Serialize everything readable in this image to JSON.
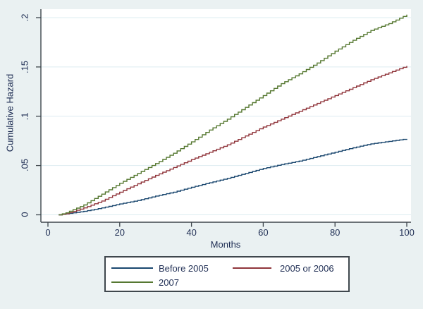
{
  "figure": {
    "background_color": "#eaf1f2",
    "plot_background_color": "#ffffff",
    "axis_color": "#3f474d",
    "grid_color": "#ddecf1",
    "text_color": "#1e2d53"
  },
  "chart_data": {
    "type": "line",
    "subtype": "step-function cumulative hazard (Nelson-Aalen style)",
    "title": "",
    "xlabel": "Months",
    "ylabel": "Cumulative Hazard",
    "xlim": [
      0,
      100
    ],
    "ylim": [
      0,
      0.2
    ],
    "x_ticks": [
      0,
      20,
      40,
      60,
      80,
      100
    ],
    "x_tick_labels": [
      "0",
      "20",
      "40",
      "60",
      "80",
      "100"
    ],
    "y_ticks": [
      0,
      0.05,
      0.1,
      0.15,
      0.2
    ],
    "y_tick_labels": [
      "0",
      ".05",
      ".1",
      ".15",
      ".2"
    ],
    "grid": "horizontal",
    "legend_position": "below-plot",
    "legend_border": true,
    "series": [
      {
        "name": "Before 2005",
        "color": "#1a476f",
        "points": [
          [
            3,
            0
          ],
          [
            5,
            0.001
          ],
          [
            10,
            0.0035
          ],
          [
            15,
            0.007
          ],
          [
            20,
            0.011
          ],
          [
            25,
            0.0145
          ],
          [
            30,
            0.019
          ],
          [
            35,
            0.023
          ],
          [
            40,
            0.028
          ],
          [
            45,
            0.0325
          ],
          [
            50,
            0.037
          ],
          [
            55,
            0.042
          ],
          [
            60,
            0.047
          ],
          [
            65,
            0.051
          ],
          [
            70,
            0.0545
          ],
          [
            75,
            0.059
          ],
          [
            80,
            0.0635
          ],
          [
            85,
            0.068
          ],
          [
            90,
            0.072
          ],
          [
            95,
            0.0745
          ],
          [
            100,
            0.077
          ]
        ]
      },
      {
        "name": "2005 or 2006",
        "color": "#90353b",
        "points": [
          [
            3,
            0
          ],
          [
            5,
            0.001
          ],
          [
            10,
            0.007
          ],
          [
            15,
            0.014
          ],
          [
            20,
            0.023
          ],
          [
            25,
            0.0315
          ],
          [
            30,
            0.04
          ],
          [
            35,
            0.048
          ],
          [
            40,
            0.056
          ],
          [
            45,
            0.0635
          ],
          [
            50,
            0.071
          ],
          [
            55,
            0.08
          ],
          [
            60,
            0.089
          ],
          [
            65,
            0.097
          ],
          [
            70,
            0.105
          ],
          [
            75,
            0.113
          ],
          [
            80,
            0.121
          ],
          [
            85,
            0.129
          ],
          [
            90,
            0.137
          ],
          [
            95,
            0.144
          ],
          [
            100,
            0.151
          ]
        ]
      },
      {
        "name": "2007",
        "color": "#567831",
        "points": [
          [
            3,
            0
          ],
          [
            5,
            0.002
          ],
          [
            10,
            0.01
          ],
          [
            15,
            0.021
          ],
          [
            20,
            0.032
          ],
          [
            25,
            0.042
          ],
          [
            30,
            0.052
          ],
          [
            35,
            0.0625
          ],
          [
            40,
            0.074
          ],
          [
            45,
            0.086
          ],
          [
            50,
            0.097
          ],
          [
            55,
            0.109
          ],
          [
            60,
            0.121
          ],
          [
            65,
            0.133
          ],
          [
            70,
            0.143
          ],
          [
            75,
            0.154
          ],
          [
            80,
            0.166
          ],
          [
            85,
            0.177
          ],
          [
            90,
            0.187
          ],
          [
            95,
            0.194
          ],
          [
            100,
            0.203
          ]
        ]
      }
    ]
  }
}
